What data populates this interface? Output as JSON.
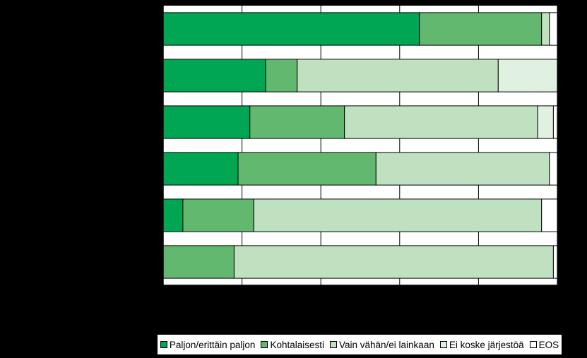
{
  "chart_data": {
    "type": "bar",
    "orientation": "horizontal",
    "stacked": true,
    "categories": [
      "",
      "",
      "",
      "",
      "",
      ""
    ],
    "series": [
      {
        "name": "Paljon/erittäin paljon",
        "color": "#00a651",
        "values": [
          65,
          26,
          22,
          19,
          5,
          0
        ]
      },
      {
        "name": "Kohtalaisesti",
        "color": "#63b870",
        "values": [
          31,
          8,
          24,
          35,
          18,
          18
        ]
      },
      {
        "name": "Vain vähän/ei lainkaan",
        "color": "#bfe1bf",
        "values": [
          2,
          51,
          49,
          44,
          73,
          81
        ]
      },
      {
        "name": "Ei koske järjestöä",
        "color": "#e1f1e1",
        "values": [
          0,
          15,
          4,
          0,
          0,
          0
        ]
      },
      {
        "name": "EOS",
        "color": "#ffffff",
        "values": [
          2,
          0,
          1,
          2,
          4,
          1
        ]
      }
    ],
    "xlim": [
      0,
      100
    ],
    "xticks": [
      0,
      20,
      40,
      60,
      80,
      100
    ],
    "grid": true,
    "legend_position": "bottom-right",
    "background": "#000000",
    "plot_background": "#ffffff"
  }
}
